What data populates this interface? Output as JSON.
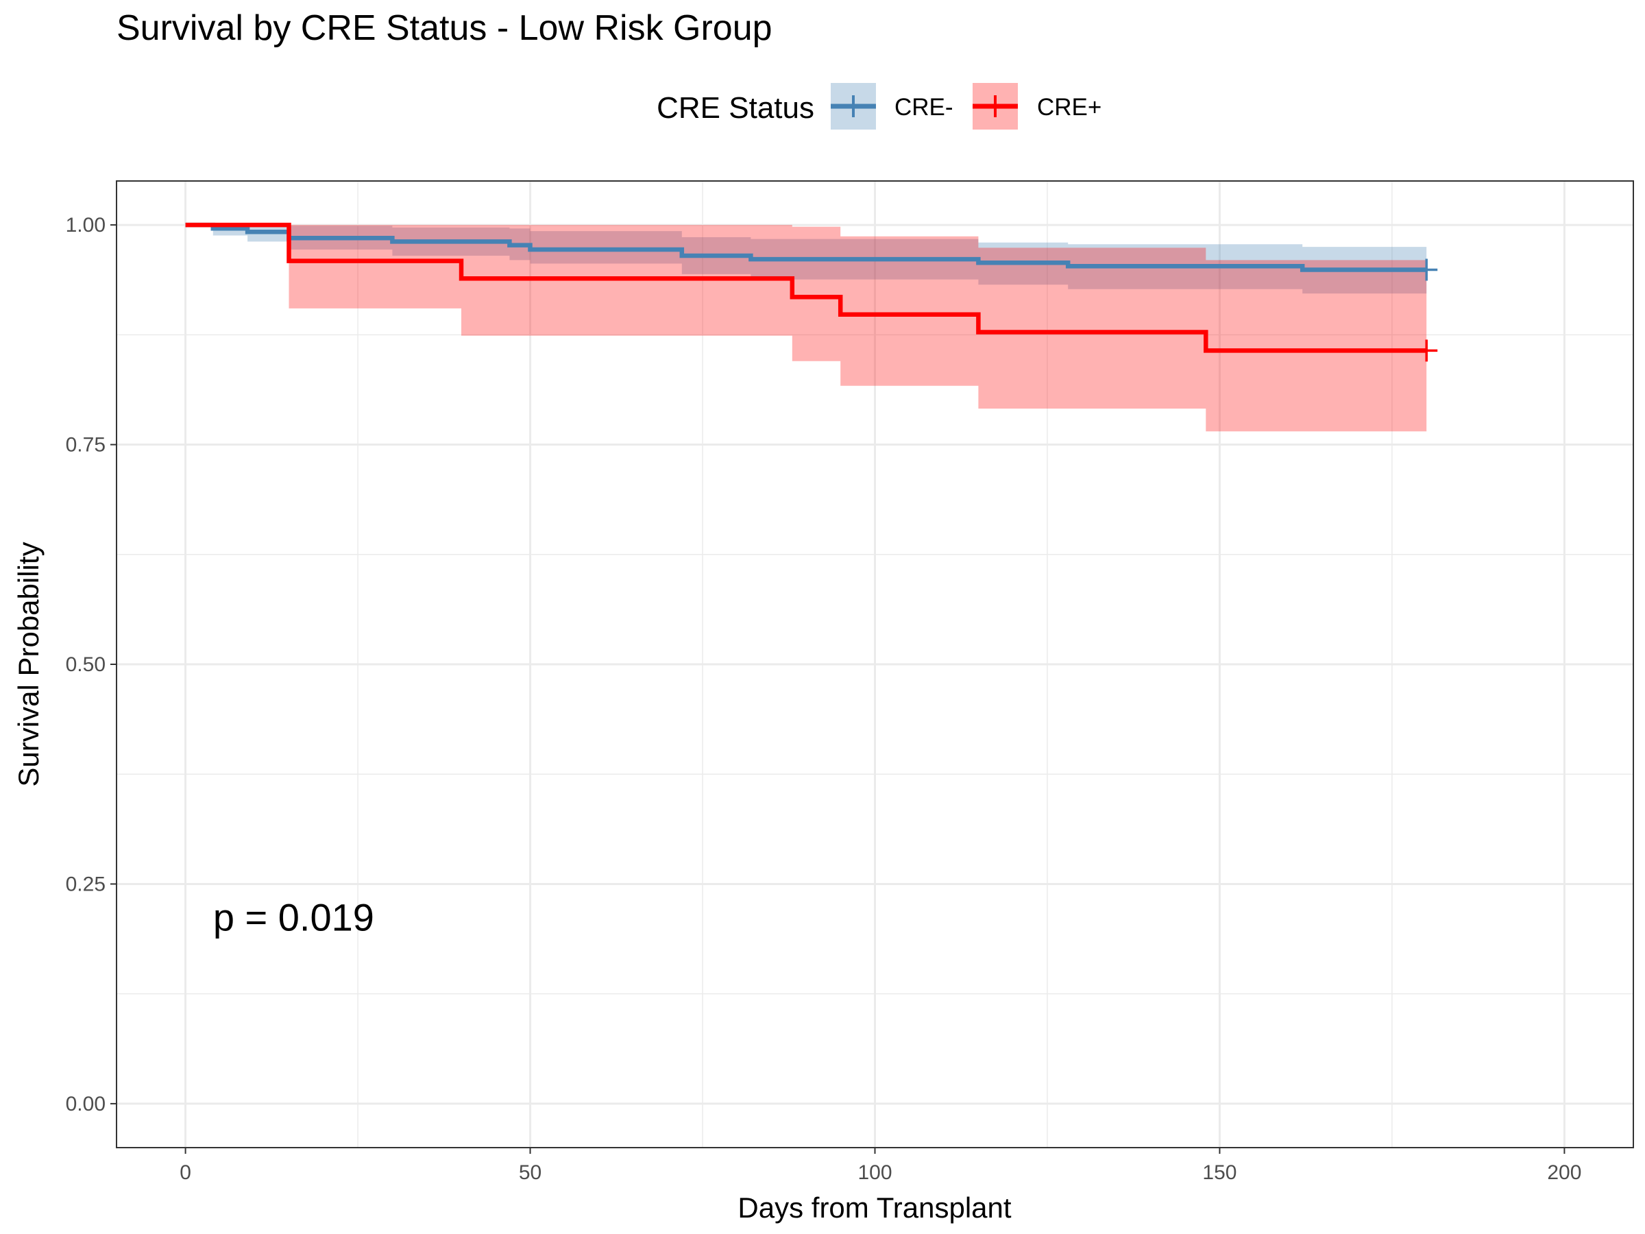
{
  "chart_data": {
    "type": "line",
    "subtype": "kaplan-meier step survival with confidence bands",
    "title": "Survival by CRE Status - Low Risk Group",
    "xlabel": "Days from Transplant",
    "ylabel": "Survival Probability",
    "xlim": [
      -10,
      210
    ],
    "ylim": [
      -0.05,
      1.05
    ],
    "xticks": [
      0,
      50,
      100,
      150,
      200
    ],
    "yticks": [
      0.0,
      0.25,
      0.5,
      0.75,
      1.0
    ],
    "ytick_labels": [
      "0.00",
      "0.25",
      "0.50",
      "0.75",
      "1.00"
    ],
    "grid": true,
    "legend": {
      "title": "CRE Status",
      "position": "top",
      "entries": [
        "CRE-",
        "CRE+"
      ]
    },
    "annotation": "p = 0.019",
    "annotation_at": {
      "x": 4,
      "y": 0.197
    },
    "series": [
      {
        "name": "CRE-",
        "color": "#4682B4",
        "band_color": "#4682B4",
        "steps": [
          {
            "x": 0,
            "y": 1.0,
            "lower": 1.0,
            "upper": 1.0
          },
          {
            "x": 4,
            "y": 0.996,
            "lower": 0.988,
            "upper": 1.0
          },
          {
            "x": 9,
            "y": 0.992,
            "lower": 0.981,
            "upper": 1.0
          },
          {
            "x": 15,
            "y": 0.985,
            "lower": 0.972,
            "upper": 0.999
          },
          {
            "x": 30,
            "y": 0.981,
            "lower": 0.965,
            "upper": 0.997
          },
          {
            "x": 47,
            "y": 0.977,
            "lower": 0.96,
            "upper": 0.996
          },
          {
            "x": 50,
            "y": 0.972,
            "lower": 0.956,
            "upper": 0.993
          },
          {
            "x": 72,
            "y": 0.965,
            "lower": 0.944,
            "upper": 0.986
          },
          {
            "x": 82,
            "y": 0.961,
            "lower": 0.938,
            "upper": 0.984
          },
          {
            "x": 115,
            "y": 0.957,
            "lower": 0.932,
            "upper": 0.98
          },
          {
            "x": 128,
            "y": 0.953,
            "lower": 0.927,
            "upper": 0.978
          },
          {
            "x": 162,
            "y": 0.949,
            "lower": 0.922,
            "upper": 0.975
          },
          {
            "x": 180,
            "y": 0.949,
            "lower": 0.922,
            "upper": 0.975
          }
        ],
        "censor_x": 180
      },
      {
        "name": "CRE+",
        "color": "#FF0000",
        "band_color": "#FF0000",
        "steps": [
          {
            "x": 0,
            "y": 1.0,
            "lower": 1.0,
            "upper": 1.0
          },
          {
            "x": 15,
            "y": 0.959,
            "lower": 0.905,
            "upper": 1.0
          },
          {
            "x": 40,
            "y": 0.939,
            "lower": 0.874,
            "upper": 1.0
          },
          {
            "x": 88,
            "y": 0.918,
            "lower": 0.845,
            "upper": 0.998
          },
          {
            "x": 95,
            "y": 0.898,
            "lower": 0.817,
            "upper": 0.987
          },
          {
            "x": 115,
            "y": 0.878,
            "lower": 0.791,
            "upper": 0.974
          },
          {
            "x": 148,
            "y": 0.857,
            "lower": 0.765,
            "upper": 0.96
          },
          {
            "x": 180,
            "y": 0.857,
            "lower": 0.765,
            "upper": 0.96
          }
        ],
        "censor_x": 180
      }
    ]
  }
}
